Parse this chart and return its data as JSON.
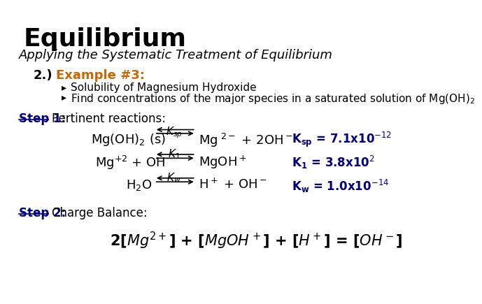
{
  "title": "Equilibrium",
  "subtitle": "Applying the Systematic Treatment of Equilibrium",
  "section_label": "2.)",
  "section_title": "Example #3:",
  "bullet1": "Solubility of Magnesium Hydroxide",
  "bullet2": "Find concentrations of the major species in a saturated solution of Mg(OH)$_2$",
  "step1_label": "Step 1:",
  "step1_text": "Pertinent reactions:",
  "step2_label": "Step 2:",
  "step2_text": "Charge Balance:",
  "bg_color": "#ffffff",
  "title_color": "#000000",
  "subtitle_color": "#000000",
  "section_color": "#cc6600",
  "step_color": "#000080",
  "equation_color": "#000000",
  "kvalue_color": "#000080",
  "bullet_color": "#000000"
}
